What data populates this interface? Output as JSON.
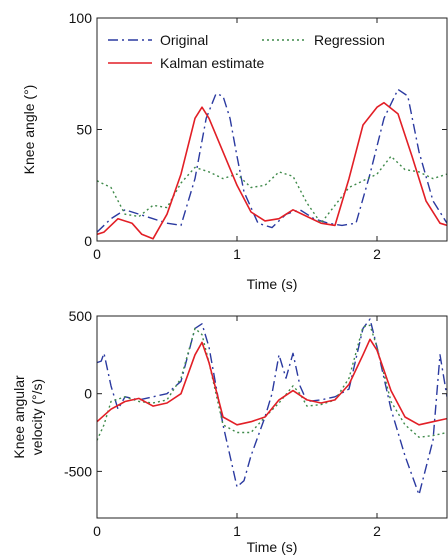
{
  "chart_data": [
    {
      "type": "line",
      "xlabel": "Time (s)",
      "ylabel": "Knee angle (°)",
      "xlim": [
        0,
        2.5
      ],
      "ylim": [
        0,
        100
      ],
      "x_ticks": [
        0,
        1,
        2
      ],
      "y_ticks": [
        0,
        50,
        100
      ],
      "x_tick_labels": [
        "0",
        "1",
        "2"
      ],
      "y_tick_labels": [
        "0",
        "50",
        "100"
      ],
      "legend": {
        "placement": "top",
        "entries": [
          {
            "name": "Original",
            "style": "dash-dot",
            "color": "#2b3aa0"
          },
          {
            "name": "Regression",
            "style": "dotted",
            "color": "#3f8a4a"
          },
          {
            "name": "Kalman estimate",
            "style": "solid",
            "color": "#e21f26"
          }
        ]
      },
      "series": [
        {
          "name": "Original",
          "style": "dash-dot",
          "color": "#2b3aa0",
          "points": [
            [
              0,
              4
            ],
            [
              0.1,
              10
            ],
            [
              0.2,
              14
            ],
            [
              0.3,
              12
            ],
            [
              0.4,
              10
            ],
            [
              0.5,
              8
            ],
            [
              0.6,
              7
            ],
            [
              0.7,
              28
            ],
            [
              0.78,
              55
            ],
            [
              0.85,
              66
            ],
            [
              0.9,
              65
            ],
            [
              0.95,
              55
            ],
            [
              1.0,
              38
            ],
            [
              1.05,
              22
            ],
            [
              1.15,
              8
            ],
            [
              1.25,
              6
            ],
            [
              1.35,
              12
            ],
            [
              1.45,
              14
            ],
            [
              1.55,
              10
            ],
            [
              1.65,
              8
            ],
            [
              1.75,
              7
            ],
            [
              1.85,
              8
            ],
            [
              1.95,
              30
            ],
            [
              2.05,
              55
            ],
            [
              2.15,
              68
            ],
            [
              2.22,
              65
            ],
            [
              2.3,
              40
            ],
            [
              2.4,
              18
            ],
            [
              2.5,
              8
            ]
          ]
        },
        {
          "name": "Regression",
          "style": "dotted",
          "color": "#3f8a4a",
          "points": [
            [
              0,
              27
            ],
            [
              0.1,
              24
            ],
            [
              0.2,
              12
            ],
            [
              0.3,
              11
            ],
            [
              0.4,
              16
            ],
            [
              0.5,
              15
            ],
            [
              0.6,
              26
            ],
            [
              0.7,
              33
            ],
            [
              0.8,
              31
            ],
            [
              0.9,
              28
            ],
            [
              1.0,
              30
            ],
            [
              1.1,
              24
            ],
            [
              1.2,
              25
            ],
            [
              1.3,
              31
            ],
            [
              1.4,
              29
            ],
            [
              1.5,
              17
            ],
            [
              1.6,
              8
            ],
            [
              1.7,
              16
            ],
            [
              1.8,
              24
            ],
            [
              1.9,
              27
            ],
            [
              2.0,
              30
            ],
            [
              2.1,
              38
            ],
            [
              2.2,
              32
            ],
            [
              2.3,
              31
            ],
            [
              2.4,
              28
            ],
            [
              2.5,
              30
            ]
          ]
        },
        {
          "name": "Kalman estimate",
          "style": "solid",
          "color": "#e21f26",
          "points": [
            [
              0,
              3
            ],
            [
              0.05,
              4
            ],
            [
              0.15,
              10
            ],
            [
              0.25,
              8
            ],
            [
              0.32,
              3
            ],
            [
              0.4,
              1
            ],
            [
              0.5,
              12
            ],
            [
              0.6,
              30
            ],
            [
              0.7,
              55
            ],
            [
              0.75,
              60
            ],
            [
              0.8,
              55
            ],
            [
              0.9,
              40
            ],
            [
              1.0,
              25
            ],
            [
              1.1,
              13
            ],
            [
              1.2,
              9
            ],
            [
              1.3,
              10
            ],
            [
              1.4,
              14
            ],
            [
              1.5,
              11
            ],
            [
              1.6,
              8
            ],
            [
              1.7,
              7
            ],
            [
              1.8,
              28
            ],
            [
              1.9,
              52
            ],
            [
              2.0,
              60
            ],
            [
              2.05,
              62
            ],
            [
              2.15,
              57
            ],
            [
              2.25,
              38
            ],
            [
              2.35,
              18
            ],
            [
              2.45,
              8
            ],
            [
              2.5,
              7
            ]
          ]
        }
      ]
    },
    {
      "type": "line",
      "xlabel": "Time (s)",
      "ylabel": "Knee angular velocity (°/s)",
      "xlim": [
        0,
        2.5
      ],
      "ylim": [
        -800,
        500
      ],
      "x_ticks": [
        0,
        1,
        2
      ],
      "y_ticks": [
        -500,
        0,
        500
      ],
      "x_tick_labels": [
        "0",
        "1",
        "2"
      ],
      "y_tick_labels": [
        "-500",
        "0",
        "500"
      ],
      "series": [
        {
          "name": "Original",
          "style": "dash-dot",
          "color": "#2b3aa0",
          "points": [
            [
              0,
              200
            ],
            [
              0.03,
              210
            ],
            [
              0.05,
              260
            ],
            [
              0.1,
              50
            ],
            [
              0.15,
              -100
            ],
            [
              0.2,
              -20
            ],
            [
              0.3,
              -40
            ],
            [
              0.4,
              -20
            ],
            [
              0.5,
              0
            ],
            [
              0.6,
              80
            ],
            [
              0.7,
              420
            ],
            [
              0.75,
              450
            ],
            [
              0.8,
              300
            ],
            [
              0.9,
              -200
            ],
            [
              1.0,
              -600
            ],
            [
              1.05,
              -560
            ],
            [
              1.1,
              -400
            ],
            [
              1.2,
              -150
            ],
            [
              1.25,
              0
            ],
            [
              1.3,
              250
            ],
            [
              1.35,
              100
            ],
            [
              1.4,
              260
            ],
            [
              1.45,
              50
            ],
            [
              1.5,
              -50
            ],
            [
              1.6,
              -40
            ],
            [
              1.7,
              -20
            ],
            [
              1.8,
              30
            ],
            [
              1.9,
              420
            ],
            [
              1.95,
              480
            ],
            [
              2.0,
              300
            ],
            [
              2.1,
              -100
            ],
            [
              2.2,
              -400
            ],
            [
              2.3,
              -650
            ],
            [
              2.4,
              -300
            ],
            [
              2.45,
              250
            ],
            [
              2.5,
              -20
            ]
          ]
        },
        {
          "name": "Regression",
          "style": "dotted",
          "color": "#3f8a4a",
          "points": [
            [
              0,
              -300
            ],
            [
              0.05,
              -200
            ],
            [
              0.1,
              -50
            ],
            [
              0.2,
              -20
            ],
            [
              0.3,
              -50
            ],
            [
              0.4,
              -60
            ],
            [
              0.5,
              -40
            ],
            [
              0.6,
              100
            ],
            [
              0.7,
              420
            ],
            [
              0.75,
              380
            ],
            [
              0.8,
              200
            ],
            [
              0.9,
              -200
            ],
            [
              1.0,
              -250
            ],
            [
              1.1,
              -250
            ],
            [
              1.2,
              -150
            ],
            [
              1.3,
              -60
            ],
            [
              1.4,
              50
            ],
            [
              1.45,
              0
            ],
            [
              1.5,
              -80
            ],
            [
              1.6,
              -70
            ],
            [
              1.7,
              -40
            ],
            [
              1.8,
              100
            ],
            [
              1.9,
              430
            ],
            [
              1.95,
              440
            ],
            [
              2.0,
              300
            ],
            [
              2.1,
              -50
            ],
            [
              2.2,
              -200
            ],
            [
              2.3,
              -280
            ],
            [
              2.4,
              -270
            ],
            [
              2.5,
              -250
            ]
          ]
        },
        {
          "name": "Kalman estimate",
          "style": "solid",
          "color": "#e21f26",
          "points": [
            [
              0,
              -180
            ],
            [
              0.1,
              -100
            ],
            [
              0.2,
              -50
            ],
            [
              0.3,
              -30
            ],
            [
              0.4,
              -80
            ],
            [
              0.5,
              -60
            ],
            [
              0.6,
              0
            ],
            [
              0.7,
              250
            ],
            [
              0.75,
              330
            ],
            [
              0.8,
              200
            ],
            [
              0.9,
              -150
            ],
            [
              1.0,
              -200
            ],
            [
              1.1,
              -180
            ],
            [
              1.2,
              -150
            ],
            [
              1.3,
              -40
            ],
            [
              1.4,
              20
            ],
            [
              1.5,
              -40
            ],
            [
              1.6,
              -60
            ],
            [
              1.7,
              -40
            ],
            [
              1.8,
              60
            ],
            [
              1.9,
              250
            ],
            [
              1.95,
              350
            ],
            [
              2.0,
              280
            ],
            [
              2.1,
              20
            ],
            [
              2.2,
              -150
            ],
            [
              2.3,
              -200
            ],
            [
              2.4,
              -180
            ],
            [
              2.5,
              -160
            ]
          ]
        }
      ]
    }
  ]
}
